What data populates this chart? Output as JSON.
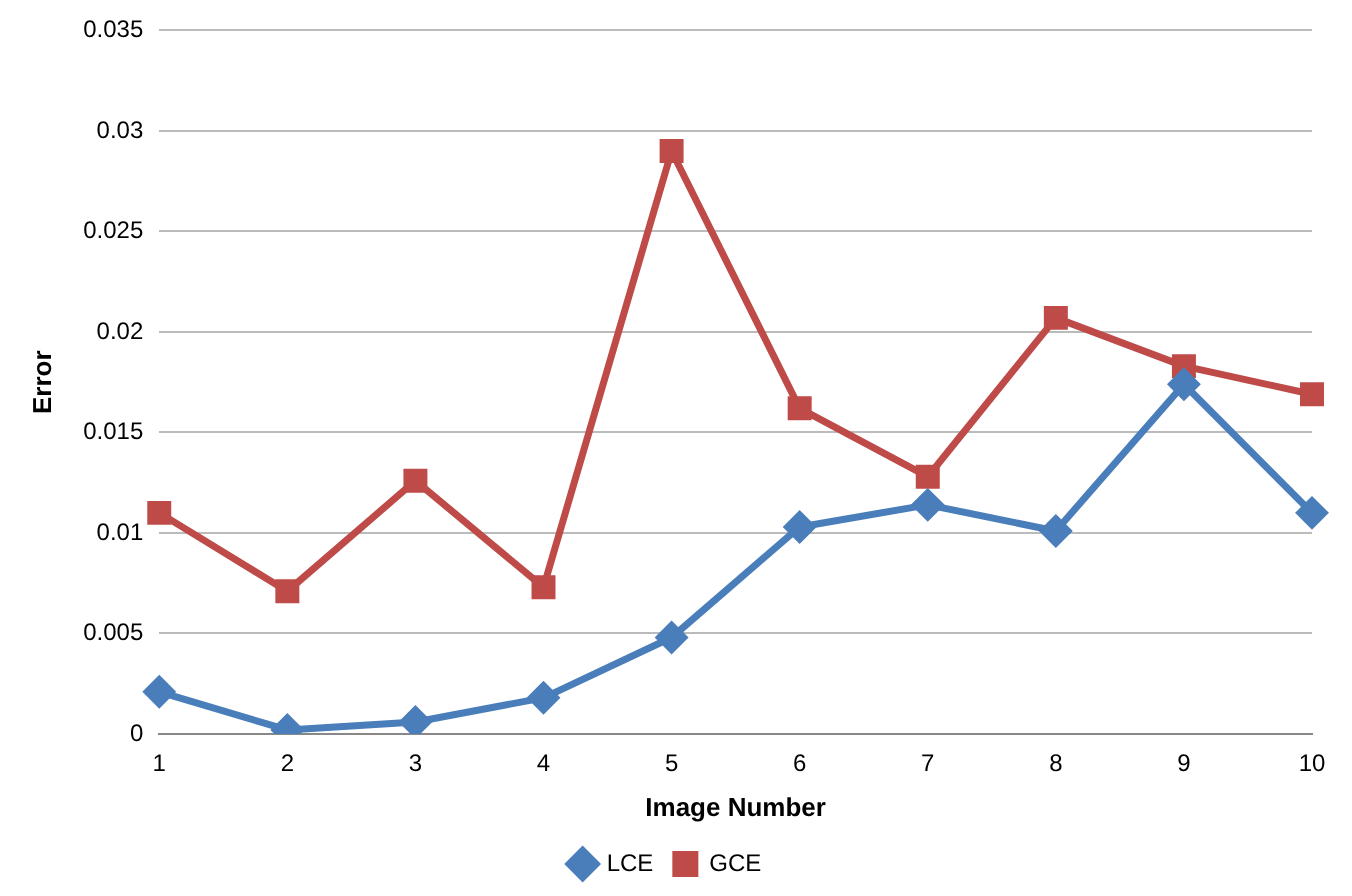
{
  "chart_data": {
    "type": "line",
    "xlabel": "Image Number",
    "ylabel": "Error",
    "categories": [
      "1",
      "2",
      "3",
      "4",
      "5",
      "6",
      "7",
      "8",
      "9",
      "10"
    ],
    "series": [
      {
        "name": "LCE",
        "color": "#4a7ebb",
        "marker": "diamond",
        "values": [
          0.0021,
          0.0002,
          0.0006,
          0.0018,
          0.0048,
          0.0103,
          0.0114,
          0.0101,
          0.0174,
          0.011
        ]
      },
      {
        "name": "GCE",
        "color": "#be4b48",
        "marker": "square",
        "values": [
          0.011,
          0.0071,
          0.0126,
          0.0073,
          0.029,
          0.0162,
          0.0128,
          0.0207,
          0.0183,
          0.0169
        ]
      }
    ],
    "ylim": [
      0,
      0.035
    ],
    "yticks": [
      0,
      0.005,
      0.01,
      0.015,
      0.02,
      0.025,
      0.03,
      0.035
    ],
    "grid": "y",
    "legend": "bottom"
  }
}
